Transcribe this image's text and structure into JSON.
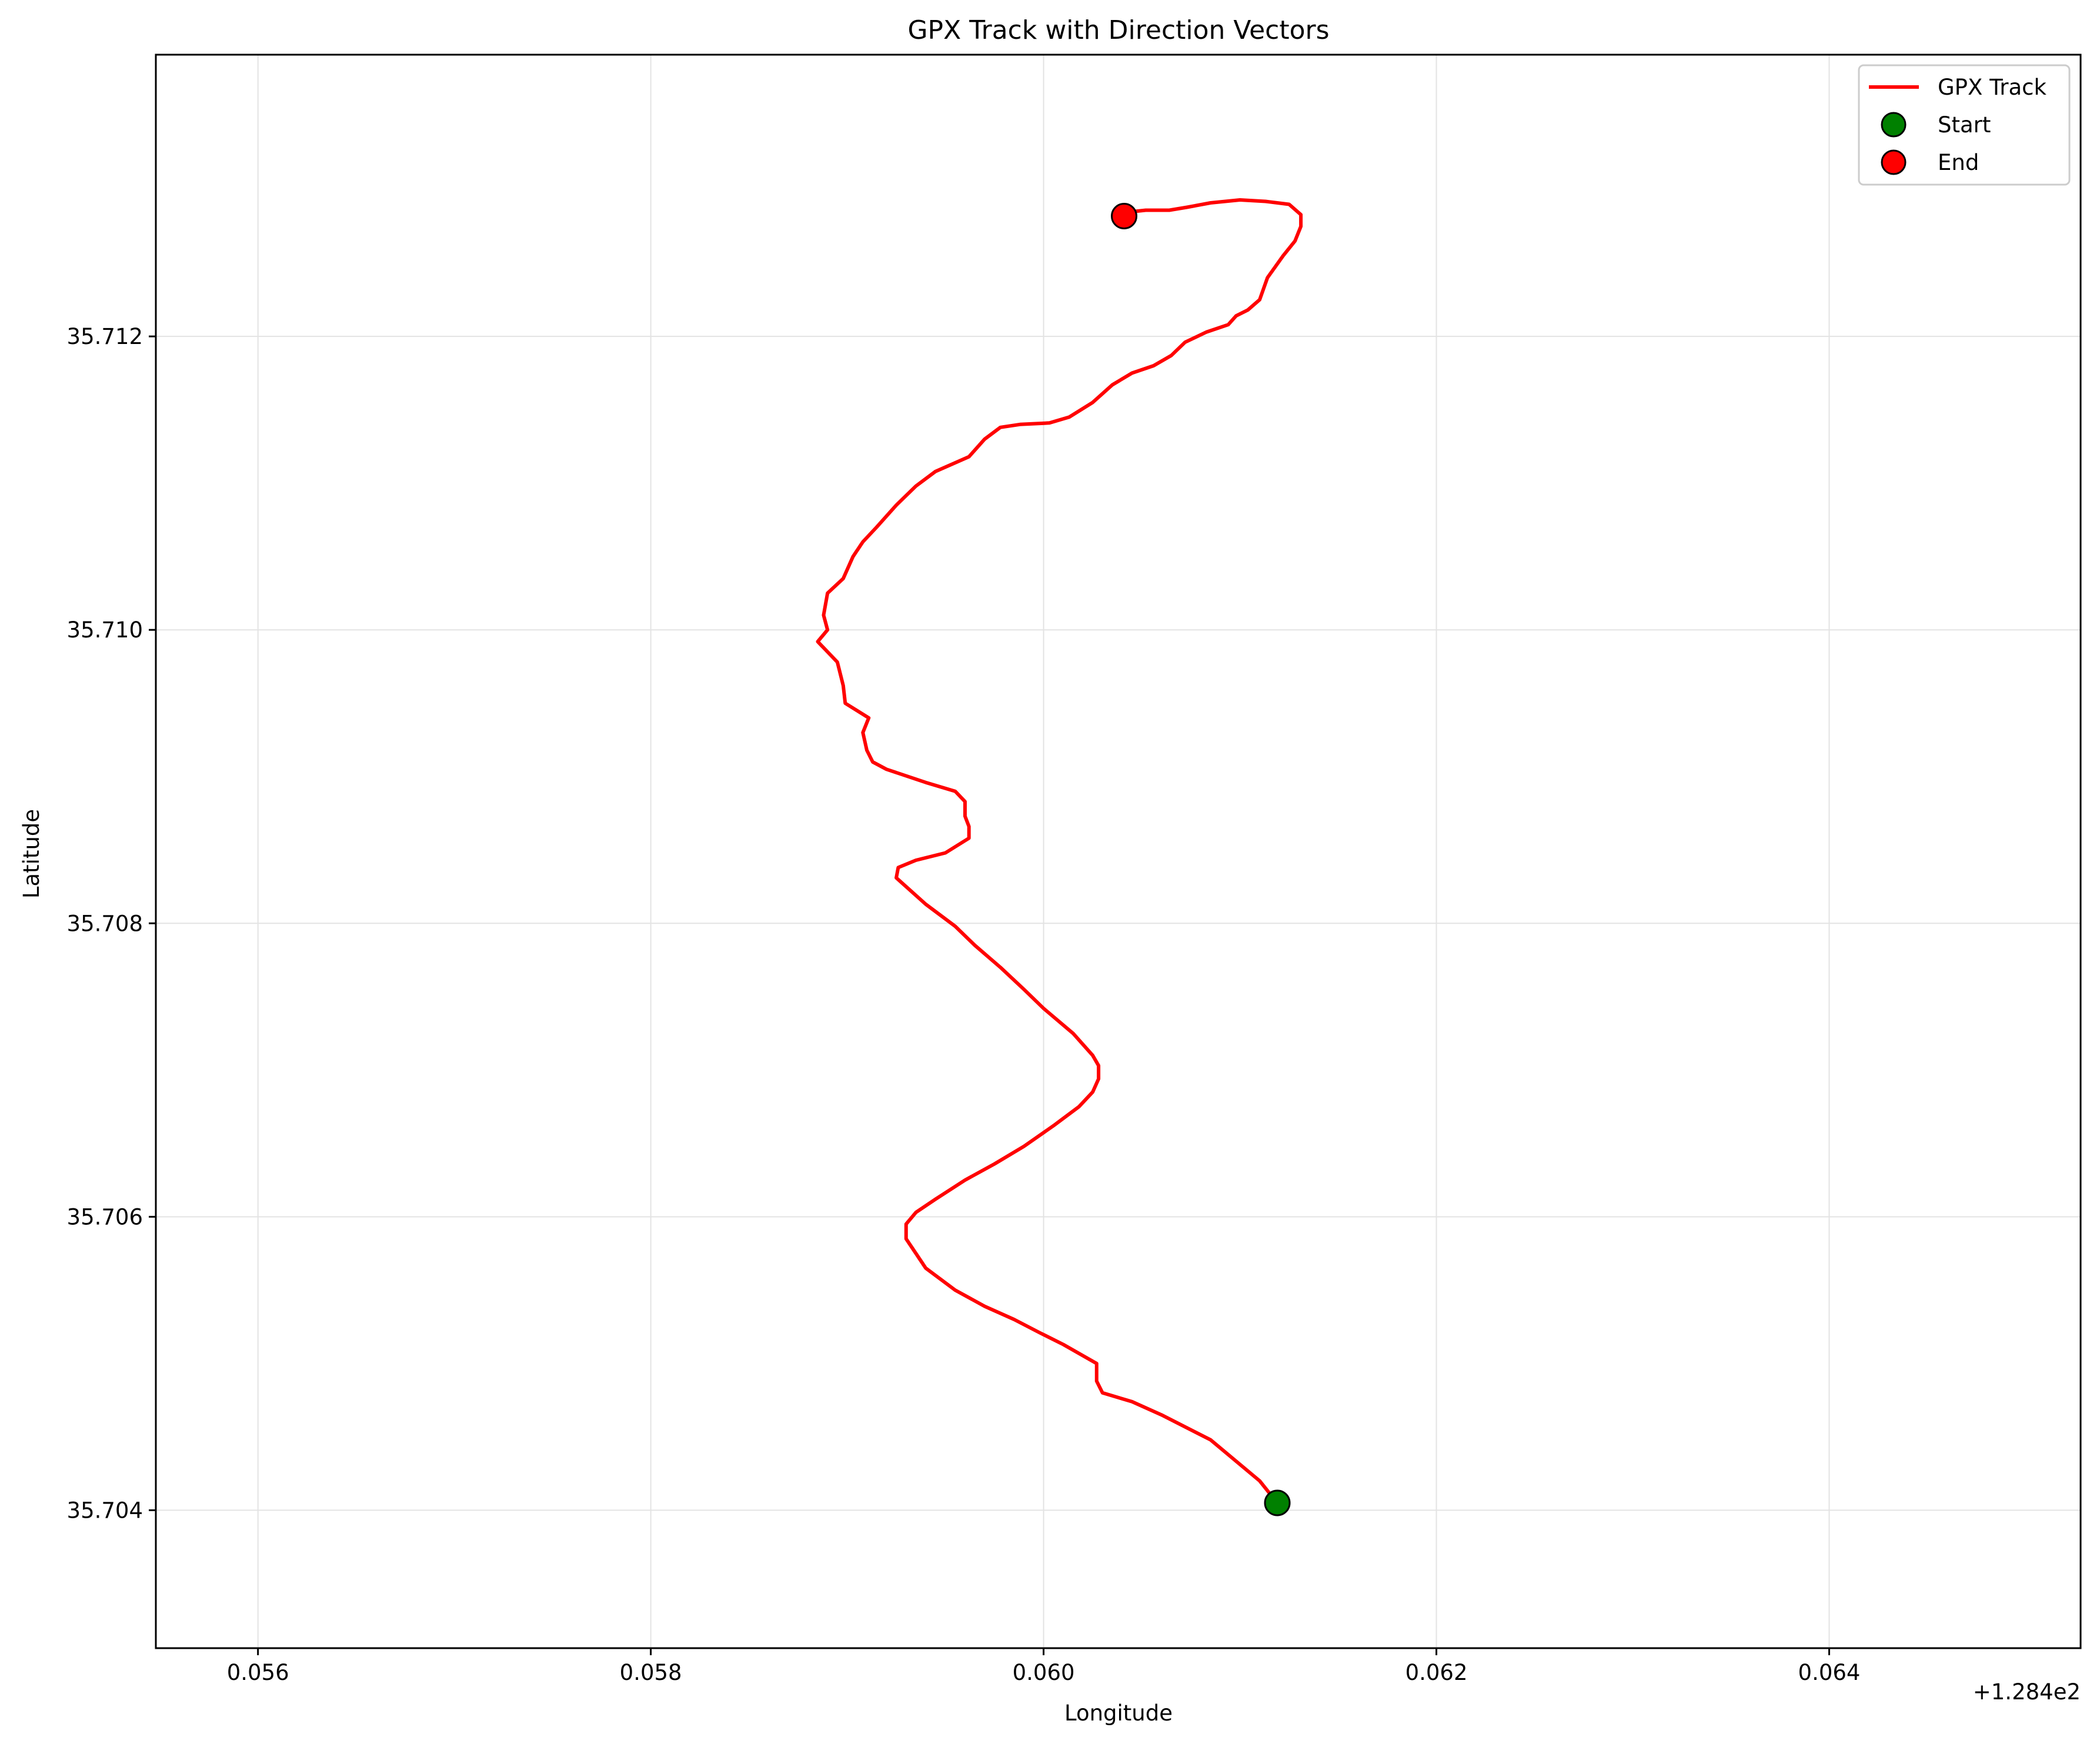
{
  "chart_data": {
    "type": "line",
    "title": "GPX Track with Direction Vectors",
    "xlabel": "Longitude",
    "ylabel": "Latitude",
    "x_offset_label": "+1.284e2",
    "xlim": [
      0.05548,
      0.06528
    ],
    "ylim": [
      35.70306,
      35.71392
    ],
    "x_ticks": [
      0.056,
      0.058,
      0.06,
      0.062,
      0.064
    ],
    "x_tick_labels": [
      "0.056",
      "0.058",
      "0.060",
      "0.062",
      "0.064"
    ],
    "y_ticks": [
      35.704,
      35.706,
      35.708,
      35.71,
      35.712
    ],
    "y_tick_labels": [
      "35.704",
      "35.706",
      "35.708",
      "35.710",
      "35.712"
    ],
    "grid": true,
    "legend_position": "top-right",
    "colors": {
      "track": "#ff0000",
      "start": "#008000",
      "end": "#ff0000"
    },
    "series": [
      {
        "name": "GPX Track",
        "type": "line",
        "points": [
          [
            0.06119,
            35.70405
          ],
          [
            0.0611,
            35.7042
          ],
          [
            0.06085,
            35.70448
          ],
          [
            0.0606,
            35.70465
          ],
          [
            0.06045,
            35.70474
          ],
          [
            0.0603,
            35.7048
          ],
          [
            0.06027,
            35.70488
          ],
          [
            0.06027,
            35.705
          ],
          [
            0.0601,
            35.70513
          ],
          [
            0.05998,
            35.70521
          ],
          [
            0.05985,
            35.7053
          ],
          [
            0.0597,
            35.70539
          ],
          [
            0.05955,
            35.7055
          ],
          [
            0.0594,
            35.70565
          ],
          [
            0.05935,
            35.70575
          ],
          [
            0.0593,
            35.70585
          ],
          [
            0.0593,
            35.70595
          ],
          [
            0.05935,
            35.70603
          ],
          [
            0.05945,
            35.70612
          ],
          [
            0.0596,
            35.70625
          ],
          [
            0.05975,
            35.70636
          ],
          [
            0.0599,
            35.70648
          ],
          [
            0.06005,
            35.70662
          ],
          [
            0.06018,
            35.70675
          ],
          [
            0.06025,
            35.70685
          ],
          [
            0.06028,
            35.70694
          ],
          [
            0.06028,
            35.70703
          ],
          [
            0.06025,
            35.7071
          ],
          [
            0.06015,
            35.70725
          ],
          [
            0.06,
            35.70742
          ],
          [
            0.0599,
            35.70755
          ],
          [
            0.05978,
            35.7077
          ],
          [
            0.05965,
            35.70785
          ],
          [
            0.05955,
            35.70798
          ],
          [
            0.0594,
            35.70813
          ],
          [
            0.0593,
            35.70825
          ],
          [
            0.05925,
            35.70831
          ],
          [
            0.05926,
            35.70838
          ],
          [
            0.05935,
            35.70843
          ],
          [
            0.0595,
            35.70848
          ],
          [
            0.05962,
            35.70858
          ],
          [
            0.05962,
            35.70866
          ],
          [
            0.0596,
            35.70873
          ],
          [
            0.0596,
            35.70883
          ],
          [
            0.05955,
            35.7089
          ],
          [
            0.0594,
            35.70896
          ],
          [
            0.0592,
            35.70905
          ],
          [
            0.05913,
            35.7091
          ],
          [
            0.0591,
            35.70918
          ],
          [
            0.05908,
            35.7093
          ],
          [
            0.05911,
            35.7094
          ],
          [
            0.05905,
            35.70945
          ],
          [
            0.05899,
            35.7095
          ],
          [
            0.05898,
            35.70962
          ],
          [
            0.05895,
            35.70978
          ],
          [
            0.0589,
            35.70985
          ],
          [
            0.05885,
            35.70992
          ],
          [
            0.0589,
            35.71
          ],
          [
            0.05888,
            35.7101
          ],
          [
            0.0589,
            35.71025
          ],
          [
            0.05898,
            35.71035
          ],
          [
            0.05903,
            35.7105
          ],
          [
            0.05908,
            35.7106
          ],
          [
            0.05915,
            35.7107
          ],
          [
            0.05925,
            35.71085
          ],
          [
            0.05935,
            35.71098
          ],
          [
            0.05945,
            35.71108
          ],
          [
            0.05962,
            35.71118
          ],
          [
            0.0597,
            35.7113
          ],
          [
            0.05978,
            35.71138
          ],
          [
            0.05988,
            35.7114
          ],
          [
            0.06003,
            35.71141
          ],
          [
            0.06013,
            35.71145
          ],
          [
            0.06025,
            35.71155
          ],
          [
            0.06035,
            35.71167
          ],
          [
            0.06045,
            35.71175
          ],
          [
            0.06056,
            35.7118
          ],
          [
            0.06065,
            35.71187
          ],
          [
            0.06072,
            35.71196
          ],
          [
            0.06083,
            35.71203
          ],
          [
            0.06094,
            35.71208
          ],
          [
            0.06098,
            35.71214
          ],
          [
            0.06104,
            35.71218
          ],
          [
            0.0611,
            35.71225
          ],
          [
            0.06114,
            35.7124
          ],
          [
            0.06122,
            35.71255
          ],
          [
            0.06128,
            35.71265
          ],
          [
            0.06131,
            35.71275
          ],
          [
            0.06131,
            35.71283
          ],
          [
            0.06125,
            35.7129
          ],
          [
            0.06113,
            35.71292
          ],
          [
            0.061,
            35.71293
          ],
          [
            0.06085,
            35.71291
          ],
          [
            0.06073,
            35.71288
          ],
          [
            0.06064,
            35.71286
          ],
          [
            0.06052,
            35.71286
          ],
          [
            0.06045,
            35.71285
          ],
          [
            0.06041,
            35.71282
          ]
        ]
      },
      {
        "name": "Start",
        "type": "scatter",
        "points": [
          [
            0.06119,
            35.70405
          ]
        ]
      },
      {
        "name": "End",
        "type": "scatter",
        "points": [
          [
            0.06041,
            35.71282
          ]
        ]
      }
    ]
  }
}
